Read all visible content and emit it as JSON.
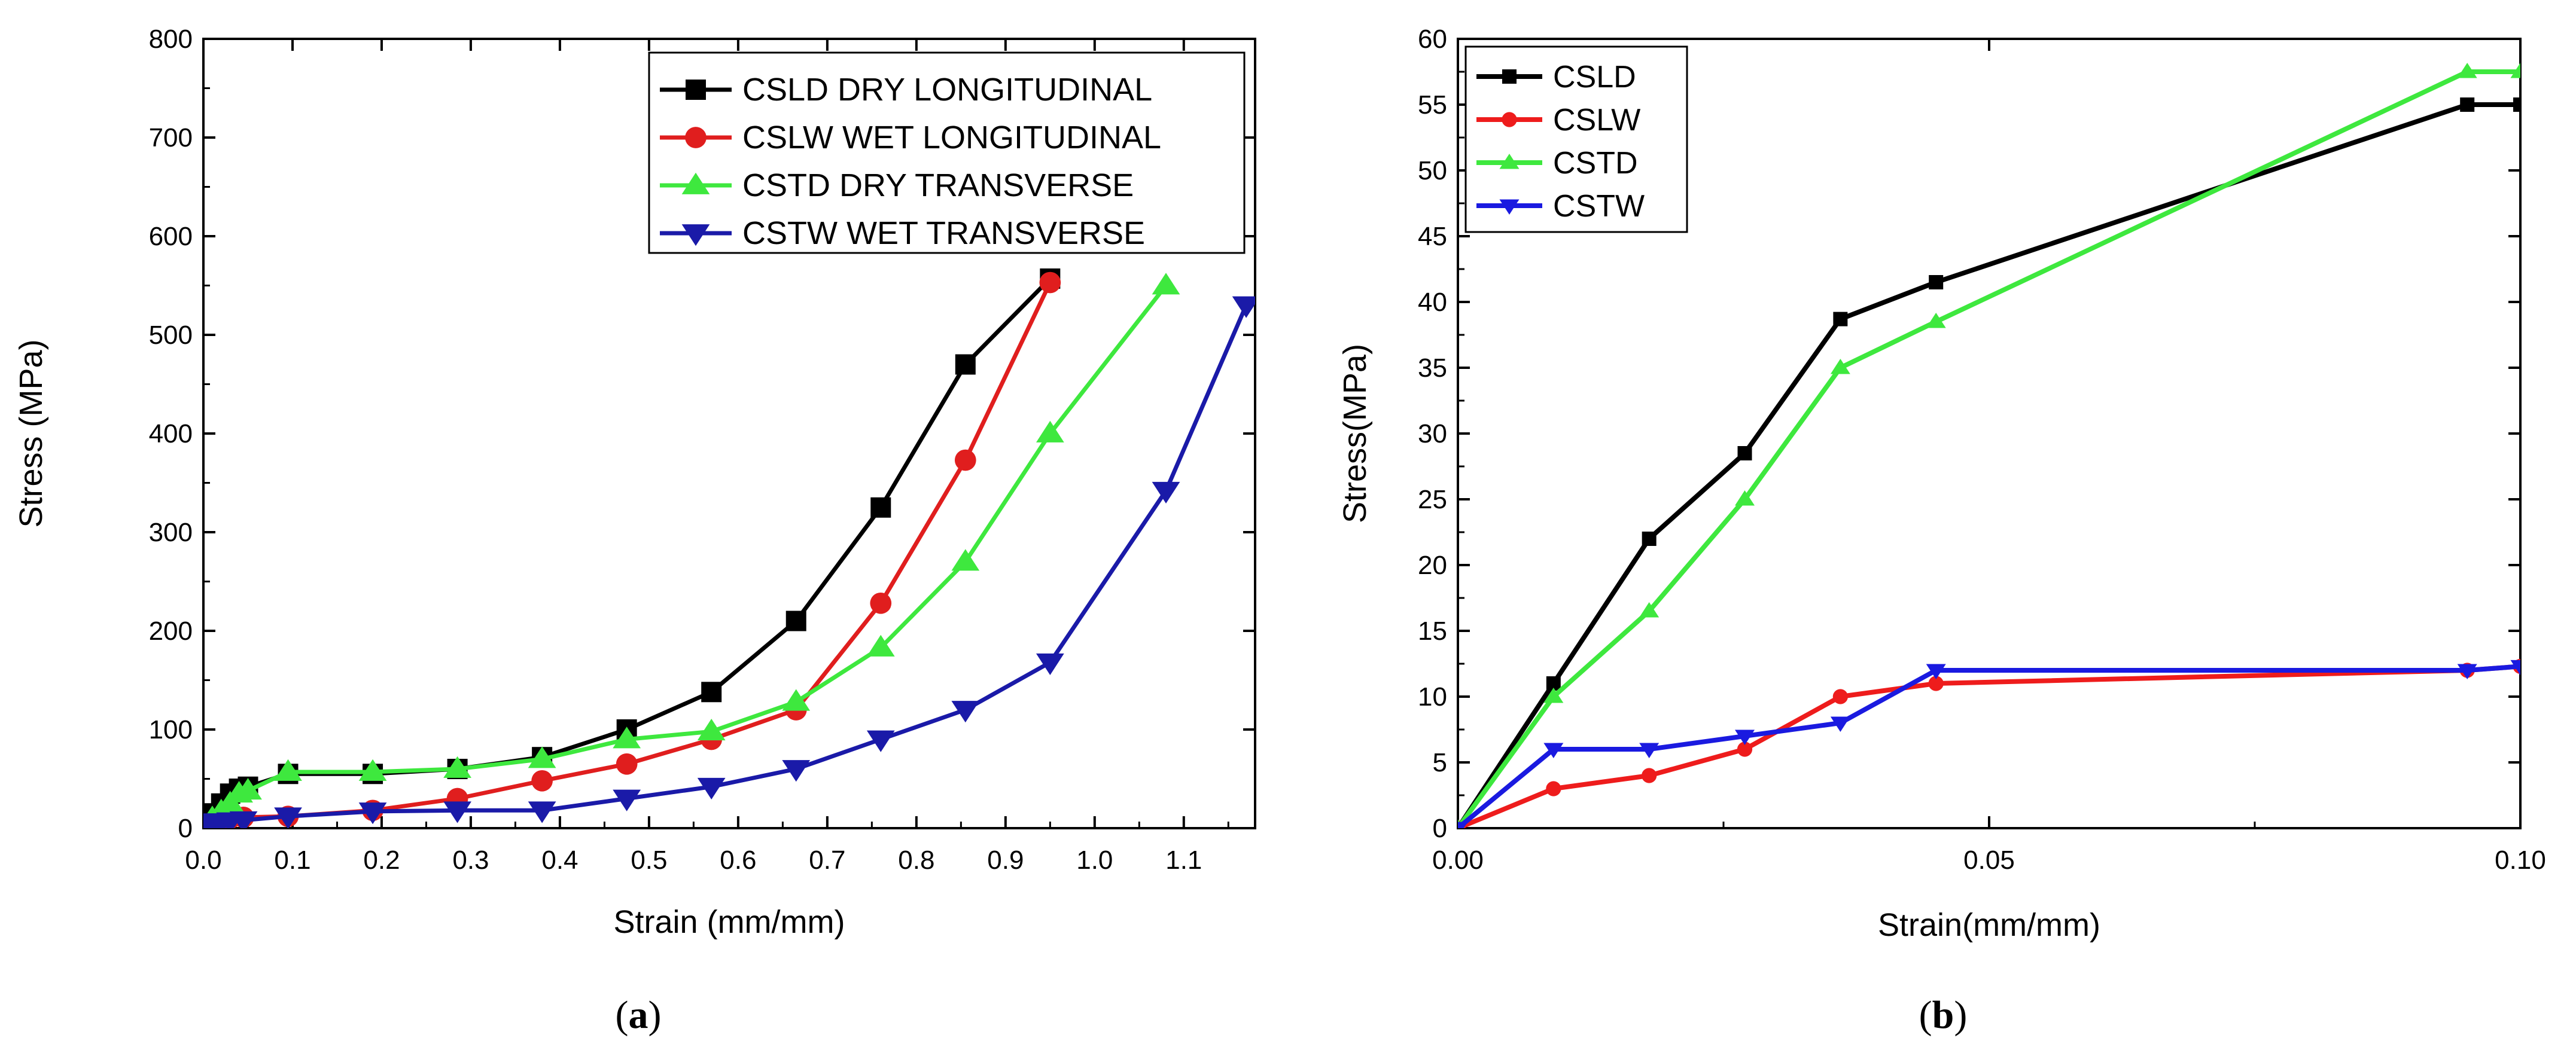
{
  "panels": [
    {
      "id": "a",
      "caption_open": "(",
      "caption_letter": "a",
      "caption_close": ")",
      "chart_data": {
        "type": "line",
        "title": "",
        "xlabel": "Strain (mm/mm)",
        "ylabel": "Stress (MPa)",
        "xlim": [
          0,
          1.18
        ],
        "ylim": [
          0,
          800
        ],
        "xticks": [
          0.0,
          0.1,
          0.2,
          0.3,
          0.4,
          0.5,
          0.6,
          0.7,
          0.8,
          0.9,
          1.0,
          1.1
        ],
        "xtick_labels": [
          "0.0",
          "0.1",
          "0.2",
          "0.3",
          "0.4",
          "0.5",
          "0.6",
          "0.7",
          "0.8",
          "0.9",
          "1.0",
          "1.1"
        ],
        "yticks": [
          0,
          100,
          200,
          300,
          400,
          500,
          600,
          700,
          800
        ],
        "ytick_labels": [
          "0",
          "100",
          "200",
          "300",
          "400",
          "500",
          "600",
          "700",
          "800"
        ],
        "grid": false,
        "legend_position": "top-right",
        "series": [
          {
            "name": "CSLD DRY LONGITUDINAL",
            "color": "#000000",
            "marker": "square",
            "x": [
              0.0,
              0.01,
              0.02,
              0.03,
              0.04,
              0.05,
              0.095,
              0.19,
              0.285,
              0.38,
              0.475,
              0.57,
              0.665,
              0.76,
              0.855,
              0.95
            ],
            "y": [
              0,
              15,
              25,
              35,
              40,
              42,
              55,
              55,
              60,
              72,
              100,
              138,
              210,
              325,
              470,
              557
            ]
          },
          {
            "name": "CSLW WET LONGITUDINAL",
            "color": "#e01e1e",
            "marker": "circle",
            "x": [
              0.0,
              0.01,
              0.02,
              0.03,
              0.045,
              0.095,
              0.19,
              0.285,
              0.38,
              0.475,
              0.57,
              0.665,
              0.76,
              0.855,
              0.95
            ],
            "y": [
              0,
              3,
              6,
              10,
              11,
              12,
              18,
              30,
              48,
              65,
              90,
              120,
              228,
              373,
              553
            ]
          },
          {
            "name": "CSTD DRY TRANSVERSE",
            "color": "#3ee83e",
            "marker": "triangle-up",
            "x": [
              0.0,
              0.01,
              0.02,
              0.03,
              0.04,
              0.05,
              0.095,
              0.19,
              0.285,
              0.38,
              0.475,
              0.57,
              0.665,
              0.76,
              0.855,
              0.95,
              1.08
            ],
            "y": [
              0,
              10,
              17,
              25,
              35,
              38,
              57,
              57,
              60,
              70,
              90,
              98,
              128,
              183,
              270,
              400,
              550
            ]
          },
          {
            "name": "CSTW WET TRANSVERSE",
            "color": "#1a1aa8",
            "marker": "triangle-down",
            "x": [
              0.0,
              0.01,
              0.02,
              0.03,
              0.045,
              0.095,
              0.19,
              0.285,
              0.38,
              0.475,
              0.57,
              0.665,
              0.76,
              0.855,
              0.95,
              1.08,
              1.17
            ],
            "y": [
              0,
              6,
              6,
              7,
              8,
              12,
              17,
              18,
              18,
              30,
              42,
              60,
              90,
              120,
              168,
              342,
              530
            ]
          }
        ]
      }
    },
    {
      "id": "b",
      "caption_open": "(",
      "caption_letter": "b",
      "caption_close": ")",
      "chart_data": {
        "type": "line",
        "title": "",
        "xlabel": "Strain(mm/mm)",
        "ylabel": "Stress(MPa)",
        "xlim": [
          0,
          0.1
        ],
        "ylim": [
          0,
          60
        ],
        "xticks": [
          0.0,
          0.05,
          0.1
        ],
        "xtick_labels": [
          "0.00",
          "0.05",
          "0.10"
        ],
        "yticks": [
          0,
          5,
          10,
          15,
          20,
          25,
          30,
          35,
          40,
          45,
          50,
          55,
          60
        ],
        "ytick_labels": [
          "0",
          "5",
          "10",
          "15",
          "20",
          "25",
          "30",
          "35",
          "40",
          "45",
          "50",
          "55",
          "60"
        ],
        "grid": false,
        "legend_position": "top-left",
        "series": [
          {
            "name": "CSLD",
            "color": "#000000",
            "marker": "square",
            "x": [
              0.0,
              0.009,
              0.018,
              0.027,
              0.036,
              0.045,
              0.095,
              0.1
            ],
            "y": [
              0,
              11,
              22,
              28.5,
              38.7,
              41.5,
              55,
              55
            ]
          },
          {
            "name": "CSLW",
            "color": "#ee1c1c",
            "marker": "circle",
            "x": [
              0.0,
              0.009,
              0.018,
              0.027,
              0.036,
              0.045,
              0.095,
              0.1
            ],
            "y": [
              0,
              3,
              4,
              6,
              10,
              11,
              12,
              12.3
            ]
          },
          {
            "name": "CSTD",
            "color": "#3ee83e",
            "marker": "triangle-up",
            "x": [
              0.0,
              0.009,
              0.018,
              0.027,
              0.036,
              0.045,
              0.095,
              0.1
            ],
            "y": [
              0,
              10,
              16.5,
              25,
              35,
              38.5,
              57.5,
              57.5
            ]
          },
          {
            "name": "CSTW",
            "color": "#1a1ae0",
            "marker": "triangle-down",
            "x": [
              0.0,
              0.009,
              0.018,
              0.027,
              0.036,
              0.045,
              0.095,
              0.1
            ],
            "y": [
              0,
              6,
              6,
              7,
              8,
              12,
              12,
              12.3
            ]
          }
        ]
      }
    }
  ]
}
